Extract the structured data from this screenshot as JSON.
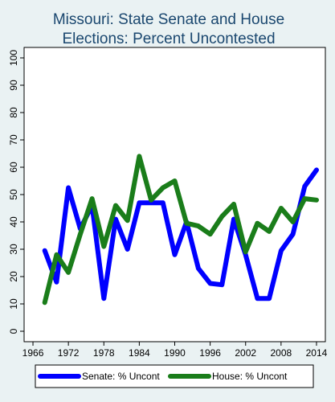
{
  "chart_data": {
    "type": "line",
    "title": [
      "Missouri: State Senate and House",
      "Elections: Percent Uncontested"
    ],
    "xlabel": "",
    "ylabel": "",
    "xlim": [
      1964.5,
      2015.5
    ],
    "ylim": [
      0,
      100
    ],
    "x_ticks": [
      1966,
      1972,
      1978,
      1984,
      1990,
      1996,
      2002,
      2008,
      2014
    ],
    "y_ticks": [
      0,
      10,
      20,
      30,
      40,
      50,
      60,
      70,
      80,
      90,
      100
    ],
    "grid": false,
    "legend_position": "bottom",
    "series": [
      {
        "name": "Senate: % Uncont",
        "color": "#0000ff",
        "x": [
          1968,
          1970,
          1972,
          1974,
          1976,
          1978,
          1980,
          1982,
          1984,
          1986,
          1988,
          1990,
          1992,
          1994,
          1996,
          1998,
          2000,
          2002,
          2004,
          2006,
          2008,
          2010,
          2012,
          2014
        ],
        "values": [
          29.5,
          18,
          52.5,
          37.5,
          46,
          12,
          41,
          30,
          47,
          47,
          47,
          28,
          40,
          23,
          17.5,
          17,
          41,
          28,
          12,
          12,
          29.5,
          35.5,
          53,
          59
        ]
      },
      {
        "name": "House: % Uncont",
        "color": "#1a7d1a",
        "x": [
          1968,
          1970,
          1972,
          1974,
          1976,
          1978,
          1980,
          1982,
          1984,
          1986,
          1988,
          1990,
          1992,
          1994,
          1996,
          1998,
          2000,
          2002,
          2004,
          2006,
          2008,
          2010,
          2012,
          2014
        ],
        "values": [
          10.5,
          28,
          21.5,
          35.5,
          48.5,
          31,
          46,
          40.5,
          64,
          48,
          52.5,
          55,
          39.5,
          38.5,
          35.5,
          42,
          46.5,
          29,
          39.5,
          36.5,
          45,
          40,
          48.5,
          48
        ]
      }
    ]
  }
}
